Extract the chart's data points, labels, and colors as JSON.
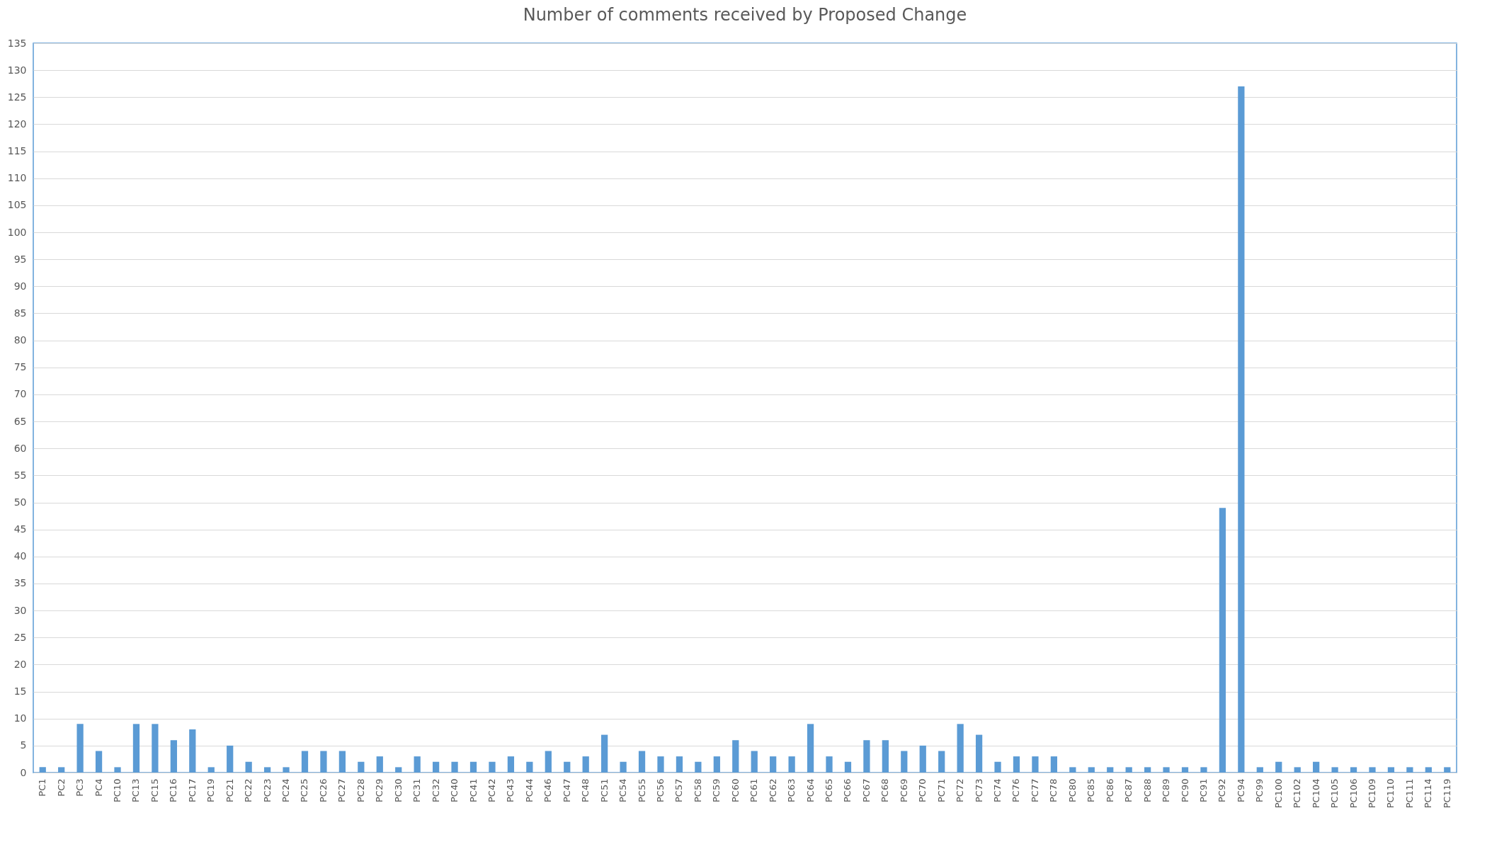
{
  "chart_data": {
    "type": "bar",
    "title": "Number of comments received by Proposed Change",
    "categories": [
      "PC1",
      "PC2",
      "PC3",
      "PC4",
      "PC10",
      "PC13",
      "PC15",
      "PC16",
      "PC17",
      "PC19",
      "PC21",
      "PC22",
      "PC23",
      "PC24",
      "PC25",
      "PC26",
      "PC27",
      "PC28",
      "PC29",
      "PC30",
      "PC31",
      "PC32",
      "PC40",
      "PC41",
      "PC42",
      "PC43",
      "PC44",
      "PC46",
      "PC47",
      "PC48",
      "PC51",
      "PC54",
      "PC55",
      "PC56",
      "PC57",
      "PC58",
      "PC59",
      "PC60",
      "PC61",
      "PC62",
      "PC63",
      "PC64",
      "PC65",
      "PC66",
      "PC67",
      "PC68",
      "PC69",
      "PC70",
      "PC71",
      "PC72",
      "PC73",
      "PC74",
      "PC76",
      "PC77",
      "PC78",
      "PC80",
      "PC85",
      "PC86",
      "PC87",
      "PC88",
      "PC89",
      "PC90",
      "PC91",
      "PC92",
      "PC94",
      "PC99",
      "PC100",
      "PC102",
      "PC104",
      "PC105",
      "PC106",
      "PC109",
      "PC110",
      "PC111",
      "PC114",
      "PC119"
    ],
    "values": [
      1,
      1,
      9,
      4,
      1,
      9,
      9,
      6,
      8,
      1,
      5,
      2,
      1,
      1,
      4,
      4,
      4,
      2,
      3,
      1,
      3,
      2,
      2,
      2,
      2,
      3,
      2,
      4,
      2,
      3,
      7,
      2,
      4,
      3,
      3,
      2,
      3,
      6,
      4,
      3,
      3,
      9,
      3,
      2,
      6,
      6,
      4,
      5,
      4,
      9,
      7,
      2,
      3,
      3,
      3,
      1,
      1,
      1,
      1,
      1,
      1,
      1,
      1,
      49,
      127,
      1,
      2,
      1,
      2,
      1,
      1,
      1,
      1,
      1,
      1,
      1
    ],
    "color": "#5b9bd5",
    "ylim": [
      0,
      135
    ],
    "yticks": [
      0,
      5,
      10,
      15,
      20,
      25,
      30,
      35,
      40,
      45,
      50,
      55,
      60,
      65,
      70,
      75,
      80,
      85,
      90,
      95,
      100,
      105,
      110,
      115,
      120,
      125,
      130,
      135
    ],
    "grid": "y"
  }
}
